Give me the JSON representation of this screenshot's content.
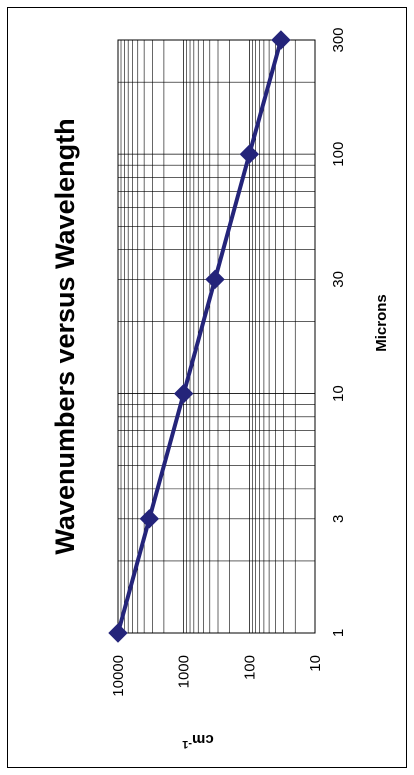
{
  "chart_data": {
    "type": "line",
    "title": "Wavenumbers versus Wavelength",
    "xlabel": "Microns",
    "ylabel": "cm",
    "ylabel_superscript": "-1",
    "x_scale": "log",
    "y_scale": "log",
    "xlim": [
      1,
      300
    ],
    "ylim": [
      10,
      10000
    ],
    "x_ticks": [
      1,
      3,
      10,
      30,
      100,
      300
    ],
    "y_ticks": [
      10,
      100,
      1000,
      10000
    ],
    "grid": true,
    "marker": "diamond",
    "line_color": "#24247a",
    "series": [
      {
        "x": [
          1,
          3,
          10,
          30,
          100,
          300
        ],
        "y": [
          10000,
          3333,
          1000,
          333,
          100,
          33
        ]
      }
    ]
  }
}
